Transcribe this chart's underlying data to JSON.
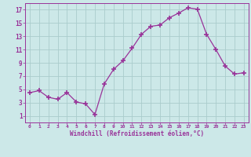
{
  "x": [
    0,
    1,
    2,
    3,
    4,
    5,
    6,
    7,
    8,
    9,
    10,
    11,
    12,
    13,
    14,
    15,
    16,
    17,
    18,
    19,
    20,
    21,
    22,
    23
  ],
  "y": [
    4.5,
    4.8,
    3.8,
    3.5,
    4.5,
    3.1,
    2.8,
    1.2,
    5.8,
    8.0,
    9.3,
    11.2,
    13.3,
    14.5,
    14.7,
    15.8,
    16.5,
    17.3,
    17.1,
    13.3,
    11.0,
    8.5,
    7.3,
    7.5
  ],
  "line_color": "#993399",
  "marker": "+",
  "marker_size": 4,
  "bg_color": "#cce8e8",
  "grid_color": "#aacccc",
  "xlabel": "Windchill (Refroidissement éolien,°C)",
  "xlabel_color": "#993399",
  "tick_color": "#993399",
  "xlim": [
    -0.5,
    23.5
  ],
  "ylim": [
    0,
    18
  ],
  "yticks": [
    1,
    3,
    5,
    7,
    9,
    11,
    13,
    15,
    17
  ],
  "xticks": [
    0,
    1,
    2,
    3,
    4,
    5,
    6,
    7,
    8,
    9,
    10,
    11,
    12,
    13,
    14,
    15,
    16,
    17,
    18,
    19,
    20,
    21,
    22,
    23
  ],
  "figsize": [
    3.2,
    2.0
  ],
  "dpi": 100
}
